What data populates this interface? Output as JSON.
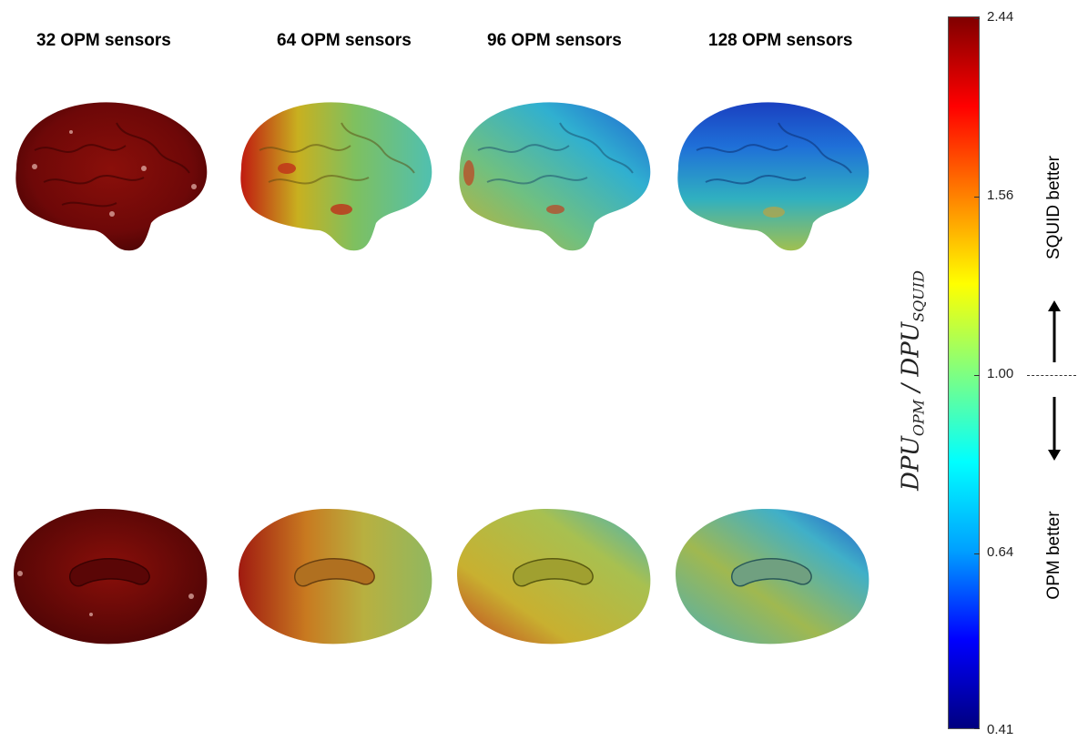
{
  "columns": [
    {
      "title": "32 OPM sensors",
      "scheme": "dark"
    },
    {
      "title": "64 OPM sensors",
      "scheme": "mixed"
    },
    {
      "title": "96 OPM sensors",
      "scheme": "cool"
    },
    {
      "title": "128 OPM sensors",
      "scheme": "blue"
    }
  ],
  "colorbar": {
    "max_label": "2.44",
    "tick_labels": [
      "2.44",
      "1.56",
      "1.00",
      "0.64",
      "0.41"
    ],
    "axis_label_main": "DPU",
    "axis_label_sub1": "OPM",
    "axis_label_sep": " / ",
    "axis_label_sub2": "SQUID",
    "colormap": [
      "#000080",
      "#0000ff",
      "#00a0ff",
      "#00ffff",
      "#80ff80",
      "#ffff00",
      "#ff8000",
      "#ff0000",
      "#800000"
    ]
  },
  "annotations": {
    "upper": "SQUID better",
    "lower": "OPM better"
  }
}
